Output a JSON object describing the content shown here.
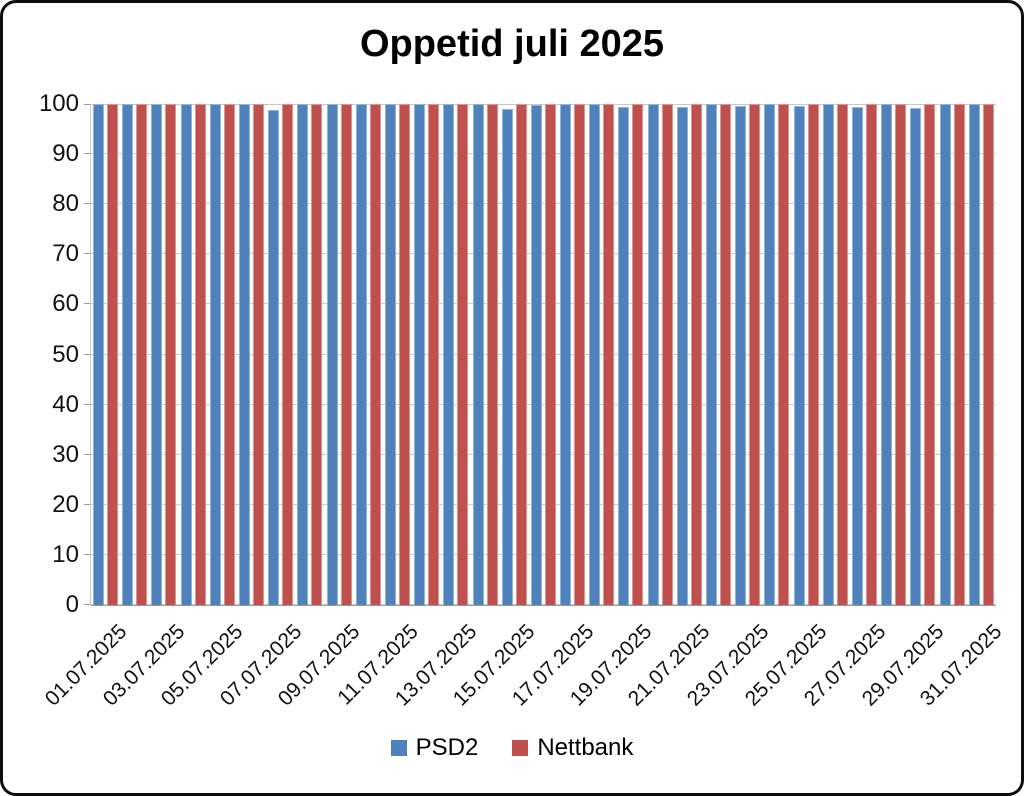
{
  "frame": {
    "title": "Oppetid juli 2025"
  },
  "chart_data": {
    "type": "bar",
    "title": "Oppetid juli 2025",
    "xlabel": "",
    "ylabel": "",
    "ylim": [
      0,
      100
    ],
    "y_ticks": [
      0,
      10,
      20,
      30,
      40,
      50,
      60,
      70,
      80,
      90,
      100
    ],
    "grid": true,
    "legend_position": "bottom",
    "categories": [
      "01.07.2025",
      "02.07.2025",
      "03.07.2025",
      "04.07.2025",
      "05.07.2025",
      "06.07.2025",
      "07.07.2025",
      "08.07.2025",
      "09.07.2025",
      "10.07.2025",
      "11.07.2025",
      "12.07.2025",
      "13.07.2025",
      "14.07.2025",
      "15.07.2025",
      "16.07.2025",
      "17.07.2025",
      "18.07.2025",
      "19.07.2025",
      "20.07.2025",
      "21.07.2025",
      "22.07.2025",
      "23.07.2025",
      "24.07.2025",
      "25.07.2025",
      "26.07.2025",
      "27.07.2025",
      "28.07.2025",
      "29.07.2025",
      "30.07.2025",
      "31.07.2025"
    ],
    "x_tick_labels": [
      "01.07.2025",
      "03.07.2025",
      "05.07.2025",
      "07.07.2025",
      "09.07.2025",
      "11.07.2025",
      "13.07.2025",
      "15.07.2025",
      "17.07.2025",
      "19.07.2025",
      "21.07.2025",
      "23.07.2025",
      "25.07.2025",
      "27.07.2025",
      "29.07.2025",
      "31.07.2025"
    ],
    "series": [
      {
        "name": "PSD2",
        "color": "#4F81BD",
        "values": [
          100,
          100,
          100,
          100,
          100,
          100,
          98.9,
          100,
          100,
          100,
          100,
          100,
          100,
          100,
          99,
          99.8,
          100,
          100,
          99.4,
          100,
          99.5,
          100,
          99.7,
          100,
          99.7,
          100,
          99.5,
          100,
          99.2,
          100,
          100
        ]
      },
      {
        "name": "Nettbank",
        "color": "#C0504D",
        "values": [
          100,
          100,
          100,
          100,
          100,
          100,
          100,
          100,
          100,
          100,
          100,
          100,
          100,
          100,
          100,
          100,
          100,
          100,
          100,
          100,
          100,
          100,
          100,
          100,
          100,
          100,
          100,
          100,
          100,
          100,
          100
        ]
      }
    ]
  },
  "colors": {
    "psd2_fill": "#4F81BD",
    "psd2_border": "#95B3D7",
    "nettbank_fill": "#C0504D",
    "nettbank_border": "#D99694",
    "gridline": "#C9C9C9",
    "axis": "#9B9B9B",
    "frame_border": "#0D0D0D"
  }
}
